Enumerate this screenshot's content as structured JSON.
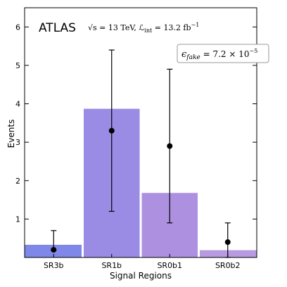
{
  "chart_data": {
    "type": "bar",
    "categories": [
      "SR3b",
      "SR1b",
      "SR0b1",
      "SR0b2"
    ],
    "series": [
      {
        "values": [
          0.33,
          3.87,
          1.68,
          0.19
        ]
      }
    ],
    "points": [
      {
        "y": 0.2,
        "err_low": 0.2,
        "err_high": 0.7
      },
      {
        "y": 3.3,
        "err_low": 1.2,
        "err_high": 5.4
      },
      {
        "y": 2.9,
        "err_low": 0.9,
        "err_high": 4.9
      },
      {
        "y": 0.4,
        "err_low": 0.0,
        "err_high": 0.9
      }
    ],
    "bar_colors": [
      "#7f88e8",
      "#9a8ce4",
      "#ad91e0",
      "#b89ae0"
    ],
    "xlabel": "Signal Regions",
    "ylabel": "Events",
    "ylim": [
      0,
      6.5
    ],
    "yticks": [
      "1",
      "2",
      "3",
      "4",
      "5",
      "6"
    ],
    "atlas_label": "ATLAS",
    "energy_label": "√s = 13 TeV, ℒ",
    "lumi_subscript": "int",
    "lumi_value": " = 13.2 fb",
    "lumi_exp": "−1",
    "fake_label": "ϵ",
    "fake_subscript": "fake",
    "fake_value": " = 7.2 × 10",
    "fake_exp": "−5",
    "grid": false
  }
}
